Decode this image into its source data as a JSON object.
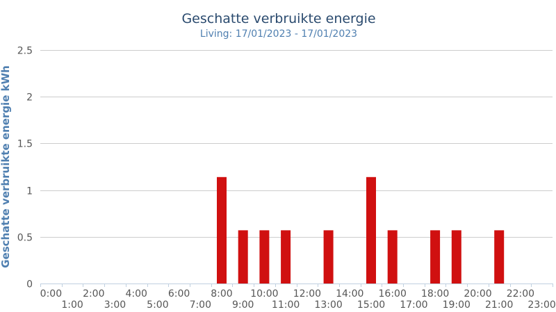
{
  "chart_data": {
    "type": "bar",
    "title": "Geschatte verbruikte energie",
    "subtitle": "Living: 17/01/2023 - 17/01/2023",
    "ylabel": "Geschatte verbruikte energie kWh",
    "xlabel": "",
    "ylim": [
      0,
      2.5
    ],
    "yticks": [
      "0",
      "0.5",
      "1",
      "1.5",
      "2",
      "2.5"
    ],
    "categories": [
      "0:00",
      "1:00",
      "2:00",
      "3:00",
      "4:00",
      "5:00",
      "6:00",
      "7:00",
      "8:00",
      "9:00",
      "10:00",
      "11:00",
      "12:00",
      "13:00",
      "14:00",
      "15:00",
      "16:00",
      "17:00",
      "18:00",
      "19:00",
      "20:00",
      "21:00",
      "22:00",
      "23:00"
    ],
    "values": [
      0,
      0,
      0,
      0,
      0,
      0,
      0,
      0,
      1.14,
      0.57,
      0.57,
      0.57,
      0,
      0.57,
      0,
      1.14,
      0.57,
      0,
      0.57,
      0.57,
      0,
      0.57,
      0,
      0
    ],
    "bar_color": "#d01010",
    "grid": true,
    "legend": "none"
  }
}
